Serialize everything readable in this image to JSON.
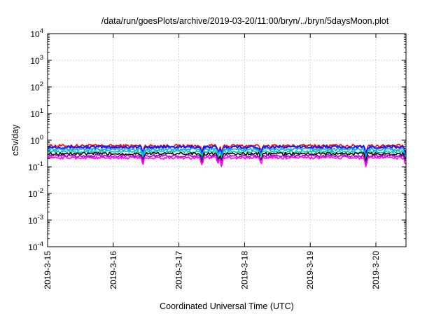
{
  "chart_data": {
    "type": "line",
    "title": "/data/run/goesPlots/archive/2019-03-20/11:00/bryn/../bryn/5daysMoon.plot",
    "xlabel": "Coordinated Universal Time (UTC)",
    "ylabel": "cSv/day",
    "y_scale": "log",
    "x_range_days": [
      "2019-03-15T00:00",
      "2019-03-20T11:00"
    ],
    "ylim": [
      0.0001,
      10000
    ],
    "grid": true,
    "x_tick_labels": [
      "2019-3-15",
      "2019-3-16",
      "2019-3-17",
      "2019-3-18",
      "2019-3-19",
      "2019-3-20"
    ],
    "y_ticks": [
      {
        "value": 0.0001,
        "base": "10",
        "exp": "-4"
      },
      {
        "value": 0.001,
        "base": "10",
        "exp": "-3"
      },
      {
        "value": 0.01,
        "base": "10",
        "exp": "-2"
      },
      {
        "value": 0.1,
        "base": "10",
        "exp": "-1"
      },
      {
        "value": 1,
        "base": "10",
        "exp": "0"
      },
      {
        "value": 10,
        "base": "10",
        "exp": "1"
      },
      {
        "value": 100,
        "base": "10",
        "exp": "2"
      },
      {
        "value": 1000,
        "base": "10",
        "exp": "3"
      },
      {
        "value": 10000,
        "base": "10",
        "exp": "4"
      }
    ],
    "series": [
      {
        "color": "#ff0000",
        "level": 0.62
      },
      {
        "color": "#1a1aff",
        "level": 0.55
      },
      {
        "color": "#00aaff",
        "level": 0.45
      },
      {
        "color": "#00c8a0",
        "level": 0.37
      },
      {
        "color": "#000000",
        "level": 0.31
      },
      {
        "color": "#a000c8",
        "level": 0.26
      },
      {
        "color": "#ff00ff",
        "level": 0.22
      }
    ],
    "dips": [
      {
        "day": 1.45,
        "depth": 0.55
      },
      {
        "day": 2.35,
        "depth": 0.5
      },
      {
        "day": 2.6,
        "depth": 0.55
      },
      {
        "day": 2.65,
        "depth": 0.45
      },
      {
        "day": 3.25,
        "depth": 0.55
      },
      {
        "day": 4.85,
        "depth": 0.45
      },
      {
        "day": 5.45,
        "depth": 0.5
      }
    ]
  }
}
